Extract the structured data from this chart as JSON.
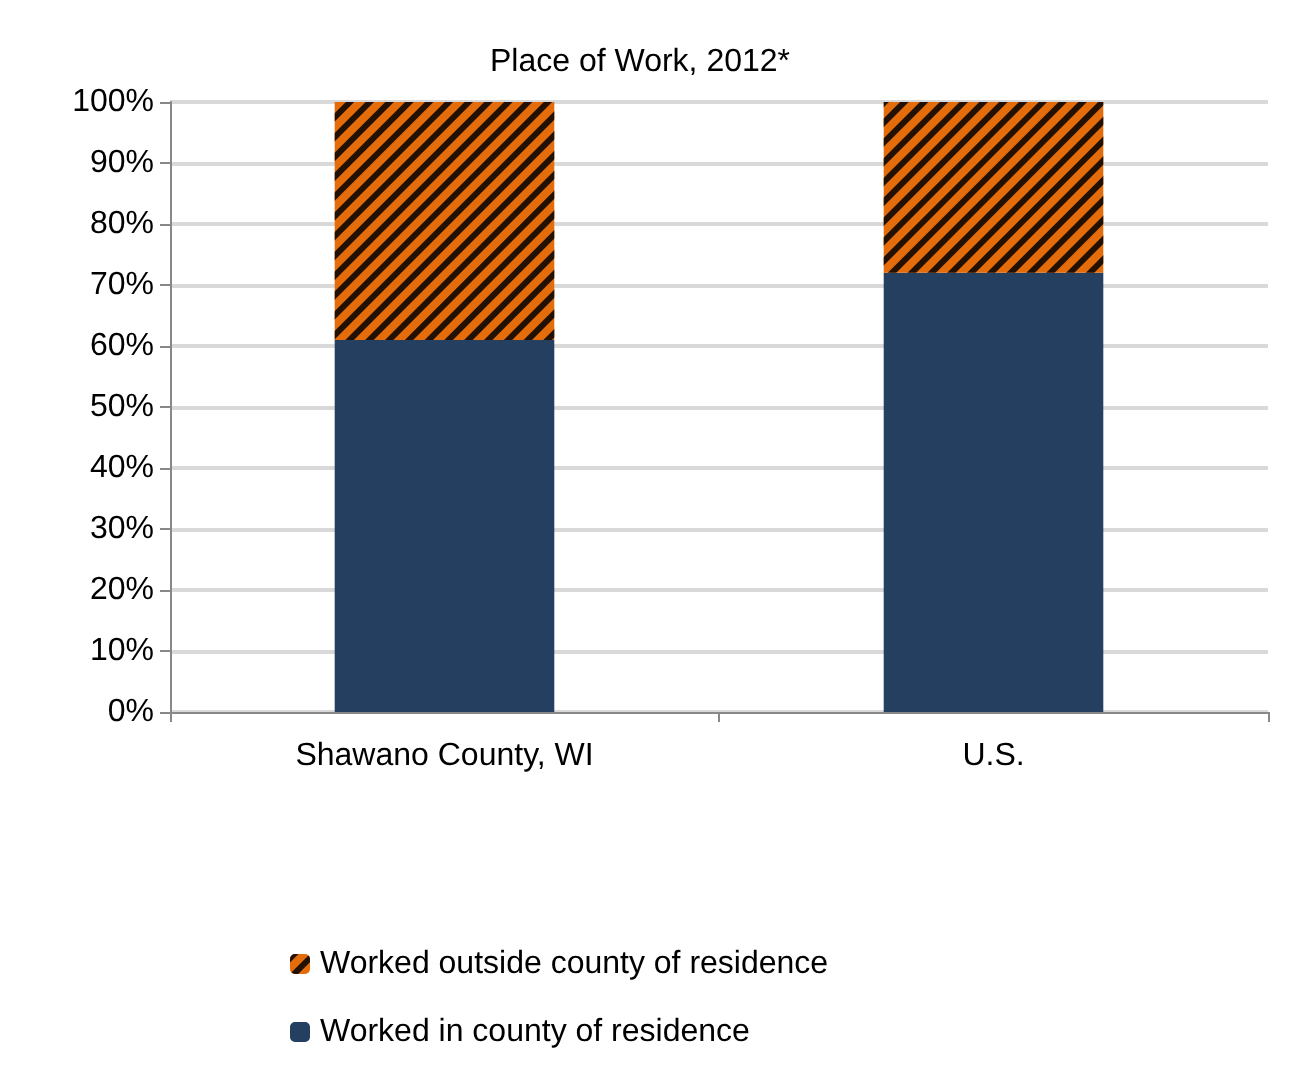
{
  "chart_data": {
    "type": "bar",
    "title": "Place of Work, 2012*",
    "categories": [
      "Shawano County, WI",
      "U.S."
    ],
    "stacked": true,
    "series": [
      {
        "name": "Worked in county of residence",
        "color": "#243f60",
        "values": [
          61,
          72
        ]
      },
      {
        "name": "Worked outside county of residence",
        "color": "#e46c0a",
        "values": [
          39,
          28
        ]
      }
    ],
    "ylim": [
      0,
      100
    ],
    "yticks": [
      {
        "value": 0,
        "label": "0%"
      },
      {
        "value": 10,
        "label": "10%"
      },
      {
        "value": 20,
        "label": "20%"
      },
      {
        "value": 30,
        "label": "30%"
      },
      {
        "value": 40,
        "label": "40%"
      },
      {
        "value": 50,
        "label": "50%"
      },
      {
        "value": 60,
        "label": "60%"
      },
      {
        "value": 70,
        "label": "70%"
      },
      {
        "value": 80,
        "label": "80%"
      },
      {
        "value": 90,
        "label": "90%"
      },
      {
        "value": 100,
        "label": "100%"
      }
    ],
    "grid": "y",
    "legend": "bottom"
  }
}
